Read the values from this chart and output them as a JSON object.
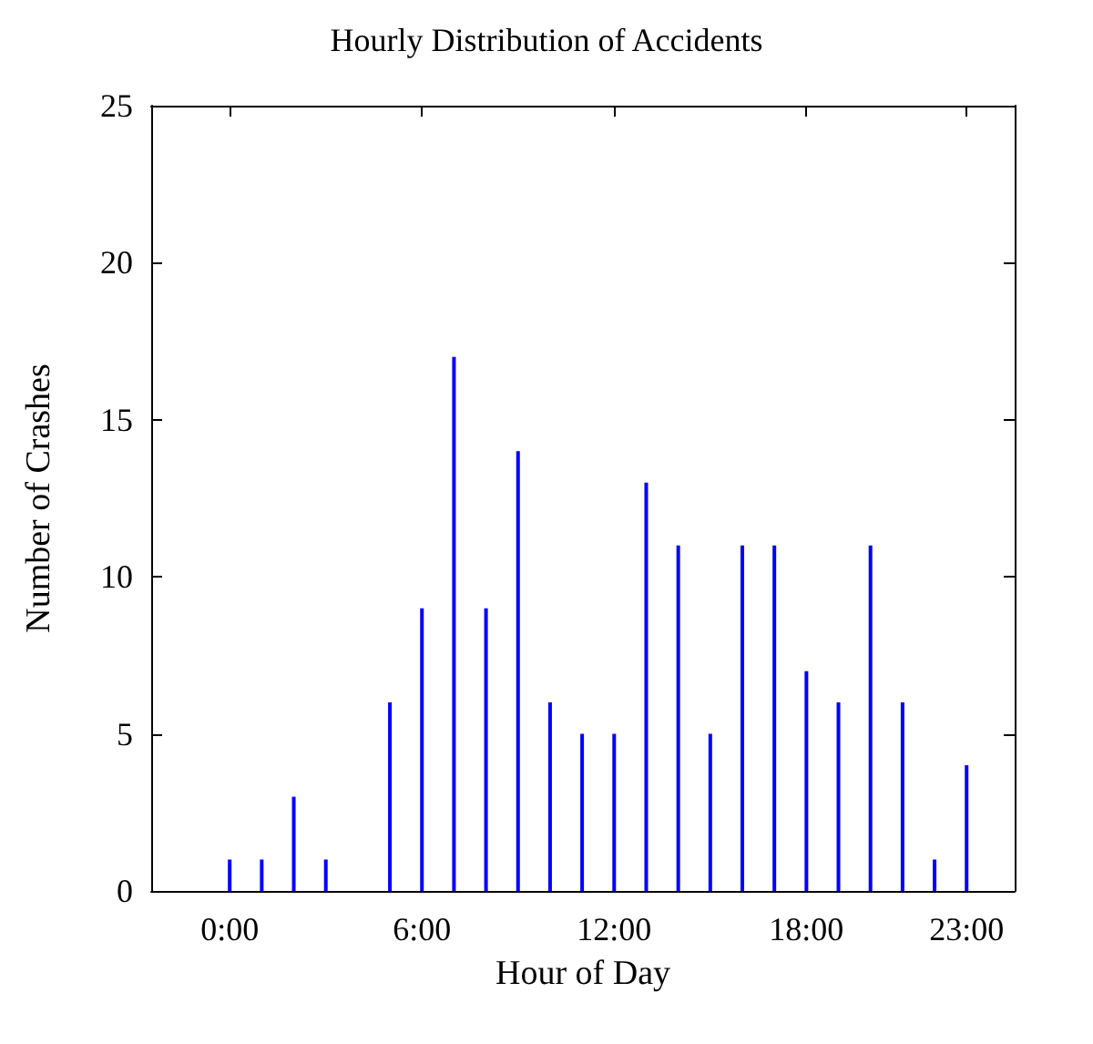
{
  "chart_data": {
    "type": "bar",
    "title": "Hourly Distribution of Accidents",
    "xlabel": "Hour of Day",
    "ylabel": "Number of Crashes",
    "x": [
      0,
      1,
      2,
      3,
      5,
      6,
      7,
      8,
      9,
      10,
      11,
      12,
      13,
      14,
      15,
      16,
      17,
      18,
      19,
      20,
      21,
      22,
      23
    ],
    "series": [
      {
        "color": "#0000ff",
        "values": [
          1,
          1,
          3,
          1,
          6,
          9,
          17,
          9,
          14,
          6,
          5,
          5,
          13,
          11,
          5,
          11,
          11,
          7,
          6,
          11,
          6,
          1,
          4
        ]
      }
    ],
    "xlim": [
      -2.45,
      24.5
    ],
    "xticks": [
      {
        "value": 0,
        "label": "0:00"
      },
      {
        "value": 6,
        "label": "6:00"
      },
      {
        "value": 12,
        "label": "12:00"
      },
      {
        "value": 18,
        "label": "18:00"
      },
      {
        "value": 23,
        "label": "23:00"
      }
    ],
    "ylim": [
      0,
      25
    ],
    "yticks": [
      0,
      5,
      10,
      15,
      20,
      25
    ],
    "grid": false
  }
}
